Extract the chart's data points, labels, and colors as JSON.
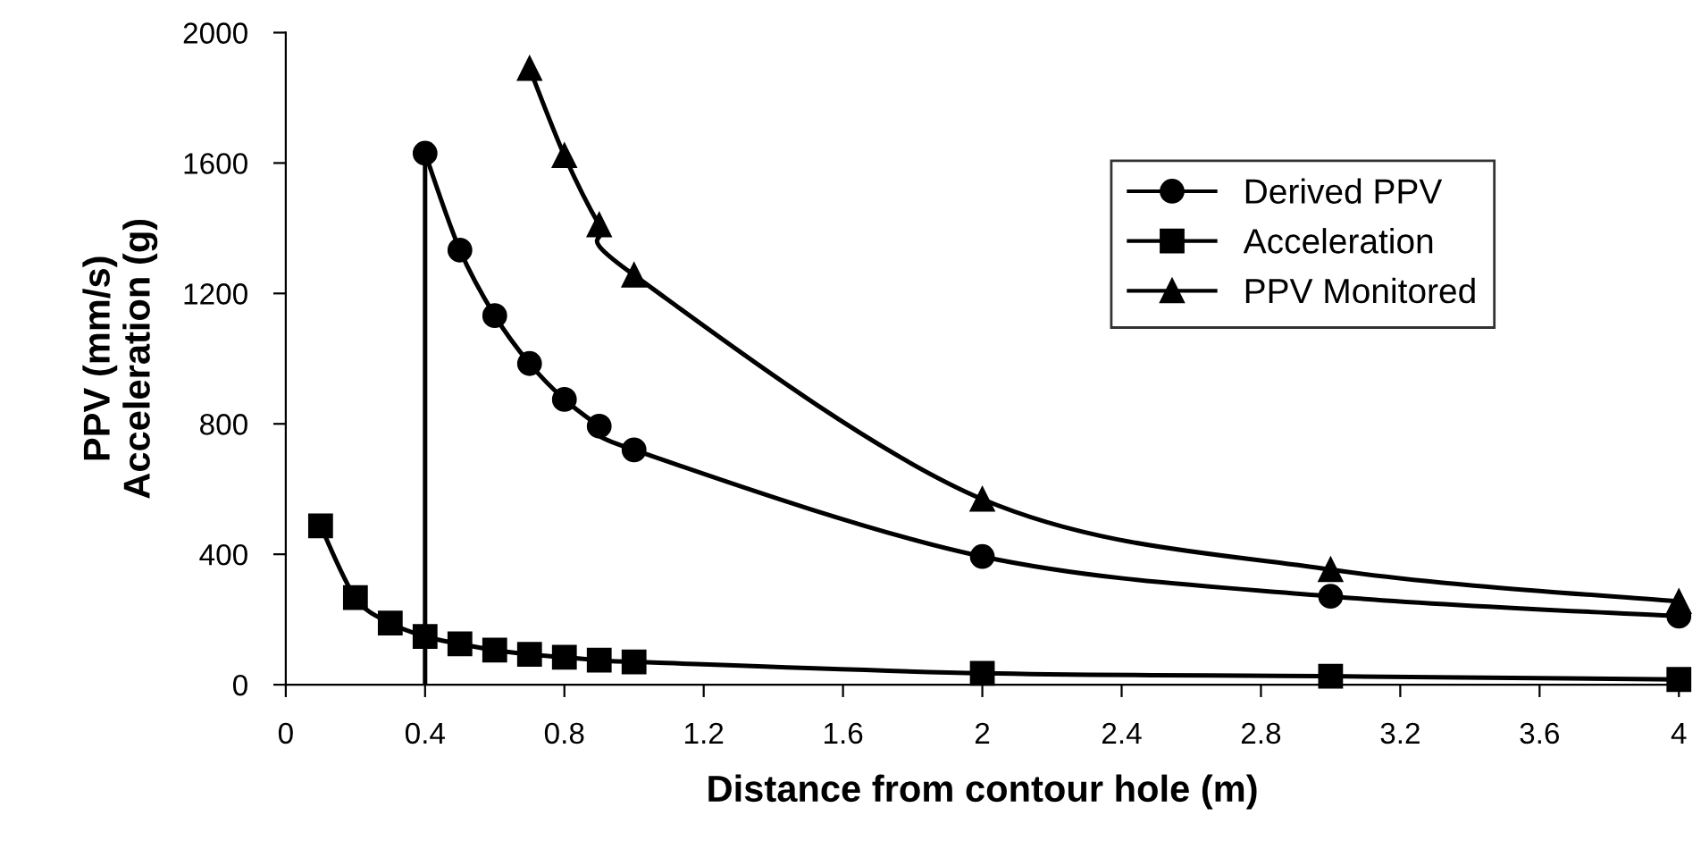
{
  "chart_data": {
    "type": "line",
    "xlabel": "Distance from contour hole (m)",
    "ylabel": "PPV (mm/s)\nAcceleration (g)",
    "xlim": [
      0,
      4
    ],
    "xticks": [
      0,
      0.4,
      0.8,
      1.2,
      1.6,
      2,
      2.4,
      2.8,
      3.2,
      3.6,
      4
    ],
    "ylim": [
      0,
      2000
    ],
    "yticks": [
      0,
      400,
      800,
      1200,
      1600,
      2000
    ],
    "grid": false,
    "legend": "top right",
    "series": [
      {
        "name": "Derived PPV",
        "color": "#000000",
        "marker": "circle",
        "x": [
          0.4,
          0.5,
          0.6,
          0.7,
          0.8,
          0.9,
          1.0,
          2,
          3,
          4
        ],
        "values": [
          1630,
          1333,
          1132,
          985,
          875,
          793,
          720,
          393,
          271,
          210
        ]
      },
      {
        "name": "Acceleration",
        "color": "#000000",
        "marker": "square",
        "x": [
          0.1,
          0.2,
          0.3,
          0.4,
          0.5,
          0.6,
          0.7,
          0.8,
          0.9,
          1.0,
          2,
          3,
          4
        ],
        "values": [
          487,
          267,
          189,
          148,
          125,
          106,
          93,
          84,
          75,
          70,
          35,
          26,
          16
        ]
      },
      {
        "name": "PPV Monitored",
        "color": "#000000",
        "marker": "triangle",
        "x": [
          0.7,
          0.8,
          0.9,
          1.0,
          2,
          3,
          4
        ],
        "values": [
          1890,
          1623,
          1410,
          1256,
          569,
          353,
          255
        ]
      },
      {
        "color": "#000000",
        "marker": "none",
        "x": [
          0.4,
          0.4
        ],
        "values": [
          0,
          1630
        ]
      }
    ]
  }
}
